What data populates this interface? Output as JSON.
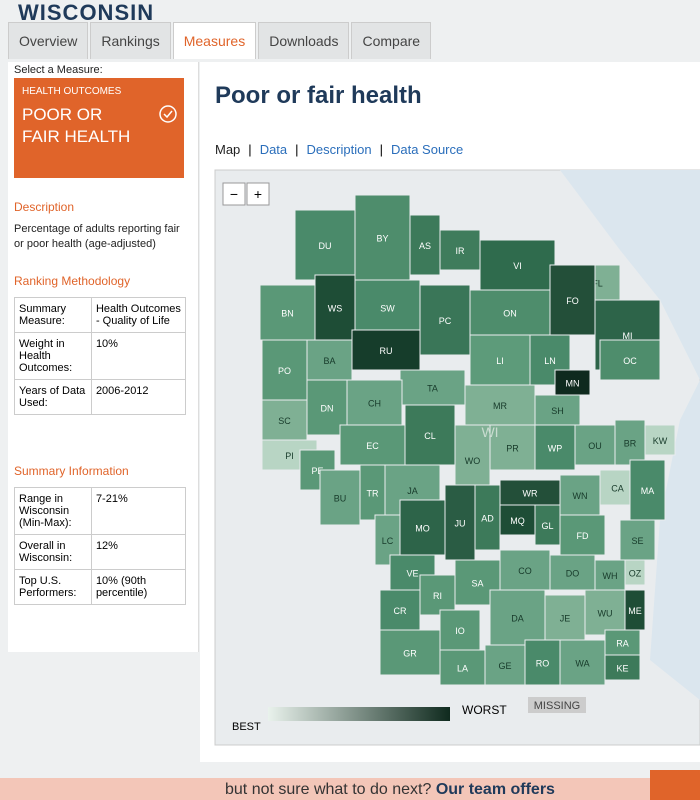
{
  "header": {
    "brand": "WISCONSIN",
    "tabs": [
      "Overview",
      "Rankings",
      "Measures",
      "Downloads",
      "Compare"
    ],
    "active_tab": 2
  },
  "sidebar": {
    "select_label": "Select a Measure:",
    "measure_category": "HEALTH OUTCOMES",
    "measure_name": "POOR OR FAIR HEALTH",
    "description_heading": "Description",
    "description": "Percentage of adults reporting fair or poor health (age-adjusted)",
    "methodology_heading": "Ranking Methodology",
    "methodology": [
      [
        "Summary Measure:",
        "Health Outcomes - Quality of Life"
      ],
      [
        "Weight in Health Outcomes:",
        "10%"
      ],
      [
        "Years of Data Used:",
        "2006-2012"
      ]
    ],
    "summary_heading": "Summary Information",
    "summary": [
      [
        "Range in Wisconsin (Min-Max):",
        "7-21%"
      ],
      [
        "Overall in Wisconsin:",
        "12%"
      ],
      [
        "Top U.S. Performers:",
        "10% (90th percentile)"
      ]
    ]
  },
  "main": {
    "title": "Poor or fair health",
    "view_tabs": [
      "Map",
      "Data",
      "Description",
      "Data Source"
    ],
    "zoom": [
      "−",
      "+"
    ],
    "map": {
      "state_label": "WI",
      "counties": [
        {
          "label": "DU",
          "color": "#4a8a6a"
        },
        {
          "label": "BY",
          "color": "#4e8d6c"
        },
        {
          "label": "AS",
          "color": "#3d7a5a"
        },
        {
          "label": "IR",
          "color": "#3f7c5c"
        },
        {
          "label": "VI",
          "color": "#2f6b4d"
        },
        {
          "label": "FL",
          "color": "#7fb094"
        },
        {
          "label": "BN",
          "color": "#5a9877"
        },
        {
          "label": "WS",
          "color": "#1e4d36"
        },
        {
          "label": "SW",
          "color": "#4a8a6a"
        },
        {
          "label": "PC",
          "color": "#3a7658"
        },
        {
          "label": "ON",
          "color": "#4e8d6c"
        },
        {
          "label": "FO",
          "color": "#234f39"
        },
        {
          "label": "MI",
          "color": "#2d6449"
        },
        {
          "label": "PO",
          "color": "#5a9877"
        },
        {
          "label": "BA",
          "color": "#6aa385"
        },
        {
          "label": "RU",
          "color": "#163d2b"
        },
        {
          "label": "LI",
          "color": "#5d9b7a"
        },
        {
          "label": "LN",
          "color": "#4a8a6a"
        },
        {
          "label": "OC",
          "color": "#4e8d6c"
        },
        {
          "label": "TA",
          "color": "#6aa385"
        },
        {
          "label": "MN",
          "color": "#0f2a1e"
        },
        {
          "label": "SC",
          "color": "#7fb094"
        },
        {
          "label": "DN",
          "color": "#5a9877"
        },
        {
          "label": "CH",
          "color": "#6aa385"
        },
        {
          "label": "MR",
          "color": "#7fb094"
        },
        {
          "label": "SH",
          "color": "#6aa385"
        },
        {
          "label": "KW",
          "color": "#b8d5c4"
        },
        {
          "label": "PI",
          "color": "#b8d5c4"
        },
        {
          "label": "EC",
          "color": "#5a9877"
        },
        {
          "label": "CL",
          "color": "#3d7a5a"
        },
        {
          "label": "WO",
          "color": "#7fb094"
        },
        {
          "label": "PR",
          "color": "#7fb094"
        },
        {
          "label": "WP",
          "color": "#4a8a6a"
        },
        {
          "label": "OU",
          "color": "#6aa385"
        },
        {
          "label": "BR",
          "color": "#6aa385"
        },
        {
          "label": "PE",
          "color": "#5a9877"
        },
        {
          "label": "BU",
          "color": "#6aa385"
        },
        {
          "label": "TR",
          "color": "#5a9877"
        },
        {
          "label": "JA",
          "color": "#6aa385"
        },
        {
          "label": "WN",
          "color": "#6aa385"
        },
        {
          "label": "CA",
          "color": "#b8d5c4"
        },
        {
          "label": "MA",
          "color": "#4a8a6a"
        },
        {
          "label": "WR",
          "color": "#234f39"
        },
        {
          "label": "MO",
          "color": "#2d6449"
        },
        {
          "label": "JU",
          "color": "#2a5c44"
        },
        {
          "label": "AD",
          "color": "#3d7a5a"
        },
        {
          "label": "MQ",
          "color": "#1e4d36"
        },
        {
          "label": "GL",
          "color": "#3d7a5a"
        },
        {
          "label": "FD",
          "color": "#5a9877"
        },
        {
          "label": "SE",
          "color": "#6aa385"
        },
        {
          "label": "LC",
          "color": "#6aa385"
        },
        {
          "label": "VE",
          "color": "#4a8a6a"
        },
        {
          "label": "SA",
          "color": "#5a9877"
        },
        {
          "label": "CO",
          "color": "#6aa385"
        },
        {
          "label": "DO",
          "color": "#6aa385"
        },
        {
          "label": "WH",
          "color": "#6aa385"
        },
        {
          "label": "OZ",
          "color": "#b8d5c4"
        },
        {
          "label": "CR",
          "color": "#4a8a6a"
        },
        {
          "label": "RI",
          "color": "#5a9877"
        },
        {
          "label": "IO",
          "color": "#5a9877"
        },
        {
          "label": "DA",
          "color": "#6aa385"
        },
        {
          "label": "JE",
          "color": "#7fb094"
        },
        {
          "label": "WU",
          "color": "#7fb094"
        },
        {
          "label": "ME",
          "color": "#1e4d36"
        },
        {
          "label": "GR",
          "color": "#5a9877"
        },
        {
          "label": "LA",
          "color": "#5a9877"
        },
        {
          "label": "GE",
          "color": "#6aa385"
        },
        {
          "label": "RO",
          "color": "#4a8a6a"
        },
        {
          "label": "WA",
          "color": "#6aa385"
        },
        {
          "label": "RA",
          "color": "#5a9877"
        },
        {
          "label": "KE",
          "color": "#3d7a5a"
        }
      ]
    },
    "legend": {
      "best": "BEST",
      "worst": "WORST",
      "missing": "MISSING"
    }
  },
  "footer": {
    "text": "but not sure what to do next?",
    "bold": "Our team offers"
  }
}
